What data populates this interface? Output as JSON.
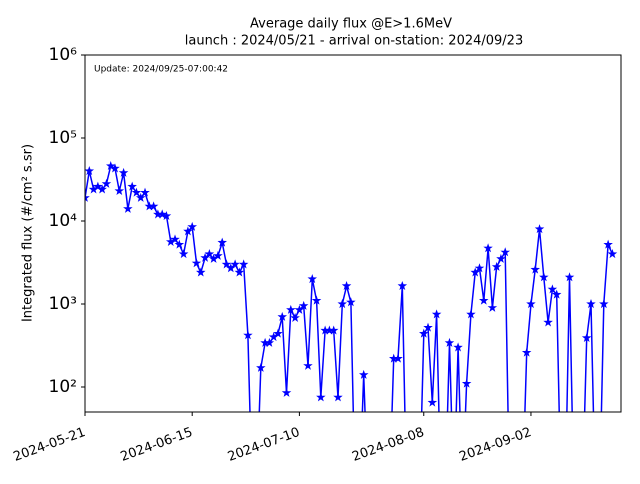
{
  "chart_data": {
    "type": "line",
    "title": "Average daily flux @E>1.6MeV",
    "subtitle": "launch : 2024/05/21 - arrival on-station: 2024/09/23",
    "annotation": "Update: 2024/09/25-07:00:42",
    "ylabel": "Integrated flux (#/cm² s.sr)",
    "log_y": true,
    "grid": false,
    "xlim": [
      "2024-05-21",
      "2024-09-23"
    ],
    "xticks": [
      "2024-05-21",
      "2024-06-15",
      "2024-07-10",
      "2024-08-08",
      "2024-09-02"
    ],
    "ylim": [
      50,
      1000000
    ],
    "yticks": [
      {
        "value": 100,
        "label": "10²"
      },
      {
        "value": 1000,
        "label": "10³"
      },
      {
        "value": 10000,
        "label": "10⁴"
      },
      {
        "value": 100000,
        "label": "10⁵"
      },
      {
        "value": 1000000,
        "label": "10⁶"
      }
    ],
    "x": [
      "2024-05-21",
      "2024-05-22",
      "2024-05-23",
      "2024-05-24",
      "2024-05-25",
      "2024-05-26",
      "2024-05-27",
      "2024-05-28",
      "2024-05-29",
      "2024-05-30",
      "2024-05-31",
      "2024-06-01",
      "2024-06-02",
      "2024-06-03",
      "2024-06-04",
      "2024-06-05",
      "2024-06-06",
      "2024-06-07",
      "2024-06-08",
      "2024-06-09",
      "2024-06-10",
      "2024-06-11",
      "2024-06-12",
      "2024-06-13",
      "2024-06-14",
      "2024-06-15",
      "2024-06-16",
      "2024-06-17",
      "2024-06-18",
      "2024-06-19",
      "2024-06-20",
      "2024-06-21",
      "2024-06-22",
      "2024-06-23",
      "2024-06-24",
      "2024-06-25",
      "2024-06-26",
      "2024-06-27",
      "2024-06-28",
      "2024-06-29",
      "2024-06-30",
      "2024-07-01",
      "2024-07-02",
      "2024-07-03",
      "2024-07-04",
      "2024-07-05",
      "2024-07-06",
      "2024-07-07",
      "2024-07-08",
      "2024-07-09",
      "2024-07-10",
      "2024-07-11",
      "2024-07-12",
      "2024-07-13",
      "2024-07-14",
      "2024-07-15",
      "2024-07-16",
      "2024-07-17",
      "2024-07-18",
      "2024-07-19",
      "2024-07-20",
      "2024-07-21",
      "2024-07-22",
      "2024-07-23",
      "2024-07-24",
      "2024-07-25",
      "2024-07-26",
      "2024-07-27",
      "2024-07-28",
      "2024-07-29",
      "2024-07-30",
      "2024-07-31",
      "2024-08-01",
      "2024-08-02",
      "2024-08-03",
      "2024-08-04",
      "2024-08-05",
      "2024-08-06",
      "2024-08-07",
      "2024-08-08",
      "2024-08-09",
      "2024-08-10",
      "2024-08-11",
      "2024-08-12",
      "2024-08-13",
      "2024-08-14",
      "2024-08-15",
      "2024-08-16",
      "2024-08-17",
      "2024-08-18",
      "2024-08-19",
      "2024-08-20",
      "2024-08-21",
      "2024-08-22",
      "2024-08-23",
      "2024-08-24",
      "2024-08-25",
      "2024-08-26",
      "2024-08-27",
      "2024-08-28",
      "2024-08-29",
      "2024-08-30",
      "2024-08-31",
      "2024-09-01",
      "2024-09-02",
      "2024-09-03",
      "2024-09-04",
      "2024-09-05",
      "2024-09-06",
      "2024-09-07",
      "2024-09-08",
      "2024-09-09",
      "2024-09-10",
      "2024-09-11",
      "2024-09-12",
      "2024-09-13",
      "2024-09-14",
      "2024-09-15",
      "2024-09-16",
      "2024-09-17",
      "2024-09-18",
      "2024-09-19",
      "2024-09-20",
      "2024-09-21"
    ],
    "series": [
      {
        "color": "#0000ff",
        "values": [
          19000,
          40000,
          24000,
          26000,
          24000,
          28000,
          46000,
          43000,
          23000,
          38000,
          14000,
          26000,
          22000,
          19000,
          22000,
          15000,
          15000,
          12000,
          12000,
          11500,
          5600,
          6000,
          5200,
          4000,
          7500,
          8500,
          3100,
          2400,
          3600,
          4000,
          3500,
          3800,
          5500,
          3000,
          2700,
          3000,
          2400,
          3000,
          420,
          5,
          5,
          170,
          340,
          340,
          400,
          440,
          700,
          85,
          850,
          680,
          850,
          950,
          180,
          2000,
          1100,
          75,
          480,
          480,
          480,
          75,
          1000,
          1650,
          1050,
          5,
          5,
          140,
          5,
          null,
          null,
          null,
          null,
          5,
          220,
          220,
          1650,
          5,
          null,
          null,
          5,
          440,
          520,
          65,
          750,
          5,
          5,
          340,
          5,
          300,
          5,
          110,
          750,
          2400,
          2700,
          1100,
          4700,
          900,
          2800,
          3500,
          4200,
          5,
          null,
          null,
          5,
          260,
          1000,
          2600,
          8000,
          2100,
          600,
          1500,
          1300,
          5,
          5,
          2100,
          5,
          null,
          5,
          390,
          1000,
          5,
          5,
          1000,
          5200,
          4000
        ]
      }
    ]
  }
}
